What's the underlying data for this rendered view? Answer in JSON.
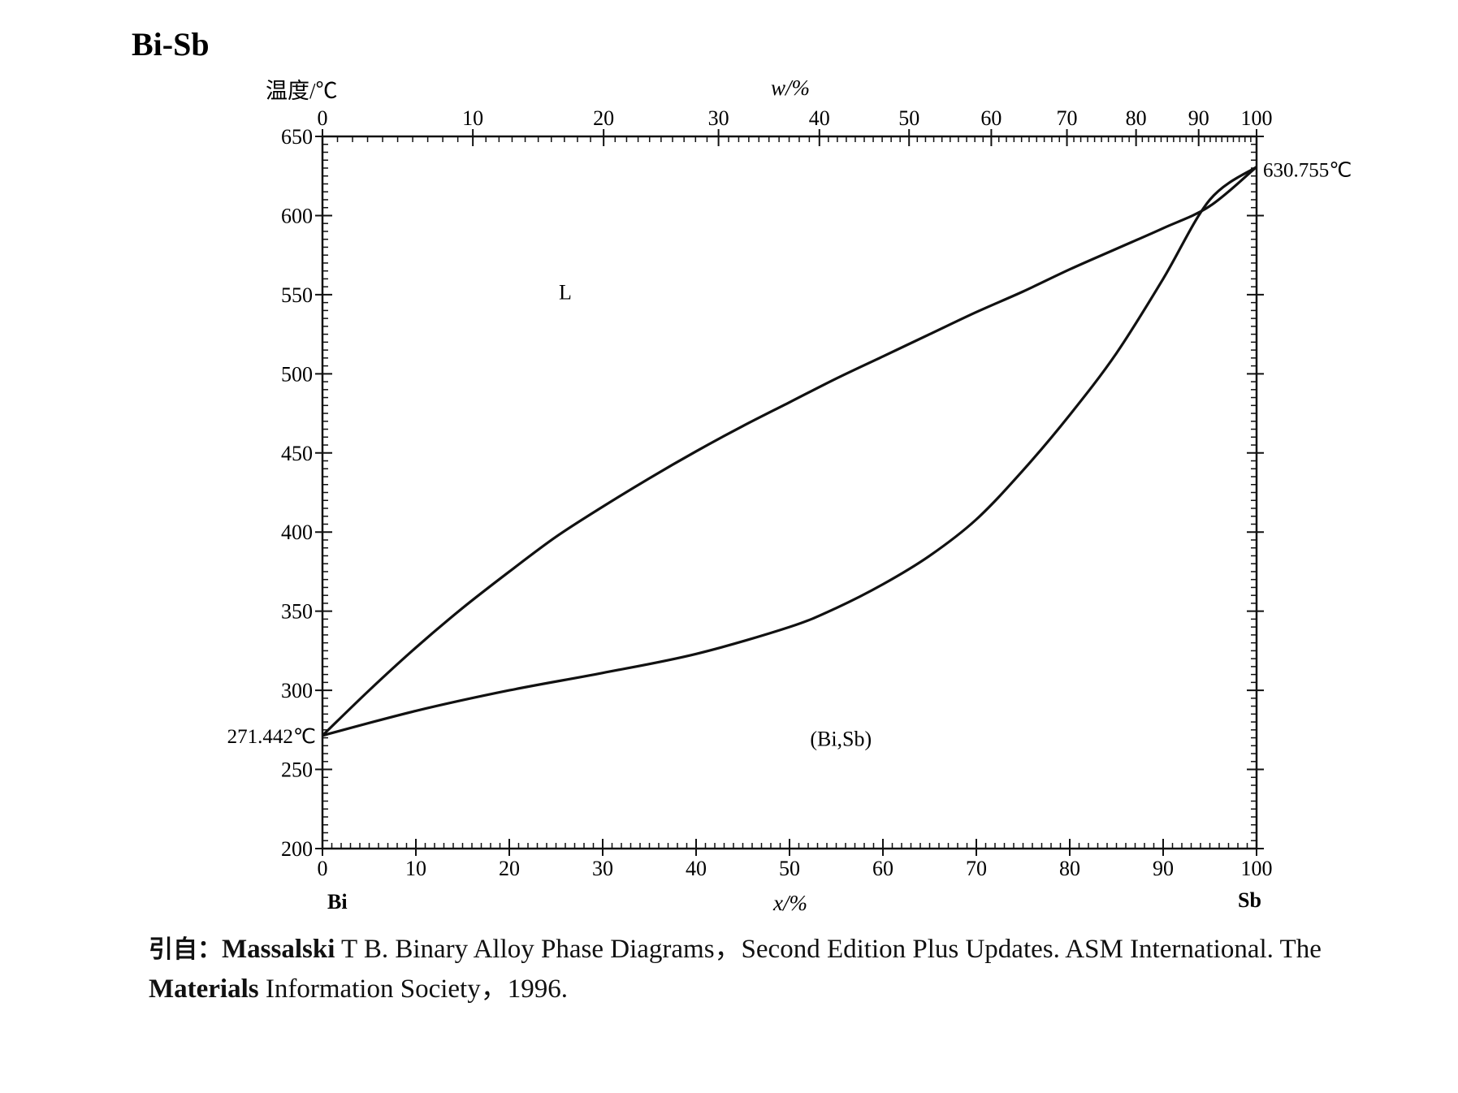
{
  "chart_data": {
    "type": "line",
    "title": "Bi-Sb",
    "ylabel": "温度/℃",
    "xlabel_top": "w/%",
    "xlabel_bottom": "x/%",
    "ylim": [
      200,
      650
    ],
    "xlim": [
      0,
      100
    ],
    "y_ticks": [
      200,
      250,
      300,
      350,
      400,
      450,
      500,
      550,
      600,
      650
    ],
    "x_ticks": [
      0,
      10,
      20,
      30,
      40,
      50,
      60,
      70,
      80,
      90,
      100
    ],
    "top_tick_labels": [
      "0",
      "10",
      "20",
      "30",
      "40",
      "50",
      "60",
      "70",
      "80",
      "90",
      "100"
    ],
    "top_tick_positions_x": [
      0,
      16.1,
      30.1,
      42.4,
      53.2,
      62.8,
      71.6,
      79.7,
      87.1,
      93.8,
      100
    ],
    "left_element": "Bi",
    "right_element": "Sb",
    "annotations": [
      {
        "text": "271.442℃",
        "x": 0,
        "y": 271.442,
        "side": "left"
      },
      {
        "text": "630.755℃",
        "x": 100,
        "y": 630.755,
        "side": "right"
      }
    ],
    "regions": [
      {
        "text": "L",
        "x": 26,
        "y": 547
      },
      {
        "text": "(Bi,Sb)",
        "x": 55.5,
        "y": 265
      }
    ],
    "series": [
      {
        "role": "liquidus",
        "x": [
          0,
          5,
          10,
          15,
          20,
          25,
          30,
          35,
          40,
          45,
          50,
          55,
          60,
          65,
          70,
          75,
          80,
          85,
          90,
          95,
          100
        ],
        "y": [
          271.442,
          300,
          327,
          352,
          375,
          397,
          416,
          434,
          451,
          467,
          482,
          497,
          511,
          525,
          539,
          552,
          566,
          579,
          592,
          606,
          630.755
        ]
      },
      {
        "role": "solidus",
        "x": [
          0,
          10,
          20,
          30,
          40,
          50,
          55,
          60,
          65,
          70,
          75,
          80,
          85,
          90,
          95,
          100
        ],
        "y": [
          271.442,
          287,
          300,
          311,
          323,
          340,
          352,
          367,
          385,
          408,
          439,
          474,
          513,
          560,
          610,
          630.755
        ]
      }
    ]
  },
  "source": {
    "prefix": "引自：",
    "lead": "Massalski",
    "line1_rest": " T B.  Binary Alloy Phase Diagrams，Second Edition Plus Updates.  ASM International. The",
    "line2_lead": "Materials",
    "line2_rest": " Information Society，1996."
  }
}
